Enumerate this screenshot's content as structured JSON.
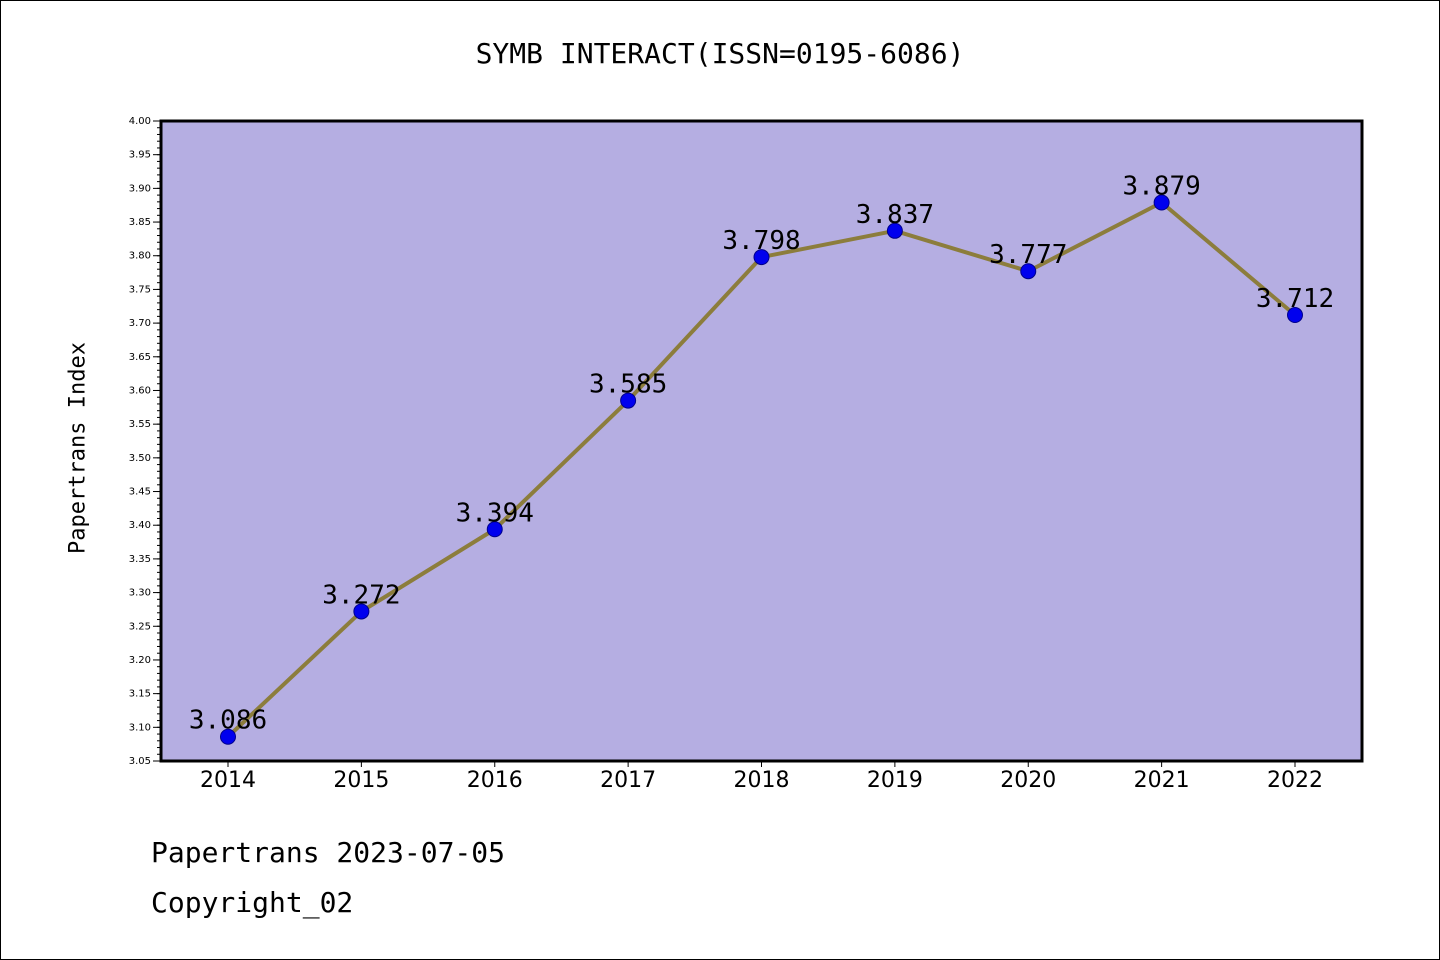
{
  "chart_data": {
    "type": "line",
    "title": "SYMB INTERACT(ISSN=0195-6086)",
    "ylabel": "Papertrans Index",
    "xlabel": "",
    "categories": [
      "2014",
      "2015",
      "2016",
      "2017",
      "2018",
      "2019",
      "2020",
      "2021",
      "2022"
    ],
    "values": [
      3.086,
      3.272,
      3.394,
      3.585,
      3.798,
      3.837,
      3.777,
      3.879,
      3.712
    ],
    "value_labels": [
      "3.086",
      "3.272",
      "3.394",
      "3.585",
      "3.798",
      "3.837",
      "3.777",
      "3.879",
      "3.712"
    ],
    "ylim": [
      3.05,
      4.0
    ],
    "y_ticks": [
      "3.05",
      "3.10",
      "3.15",
      "3.20",
      "3.25",
      "3.30",
      "3.35",
      "3.40",
      "3.45",
      "3.50",
      "3.55",
      "3.60",
      "3.65",
      "3.70",
      "3.75",
      "3.80",
      "3.85",
      "3.90",
      "3.95",
      "4.00"
    ],
    "grid": false,
    "colors": {
      "plot_background": "#b5aee2",
      "line": "#8c7d3c",
      "marker": "#0000ee",
      "marker_edge": "#00008b"
    }
  },
  "footer": {
    "line1": "Papertrans 2023-07-05",
    "line2": "Copyright_02"
  }
}
